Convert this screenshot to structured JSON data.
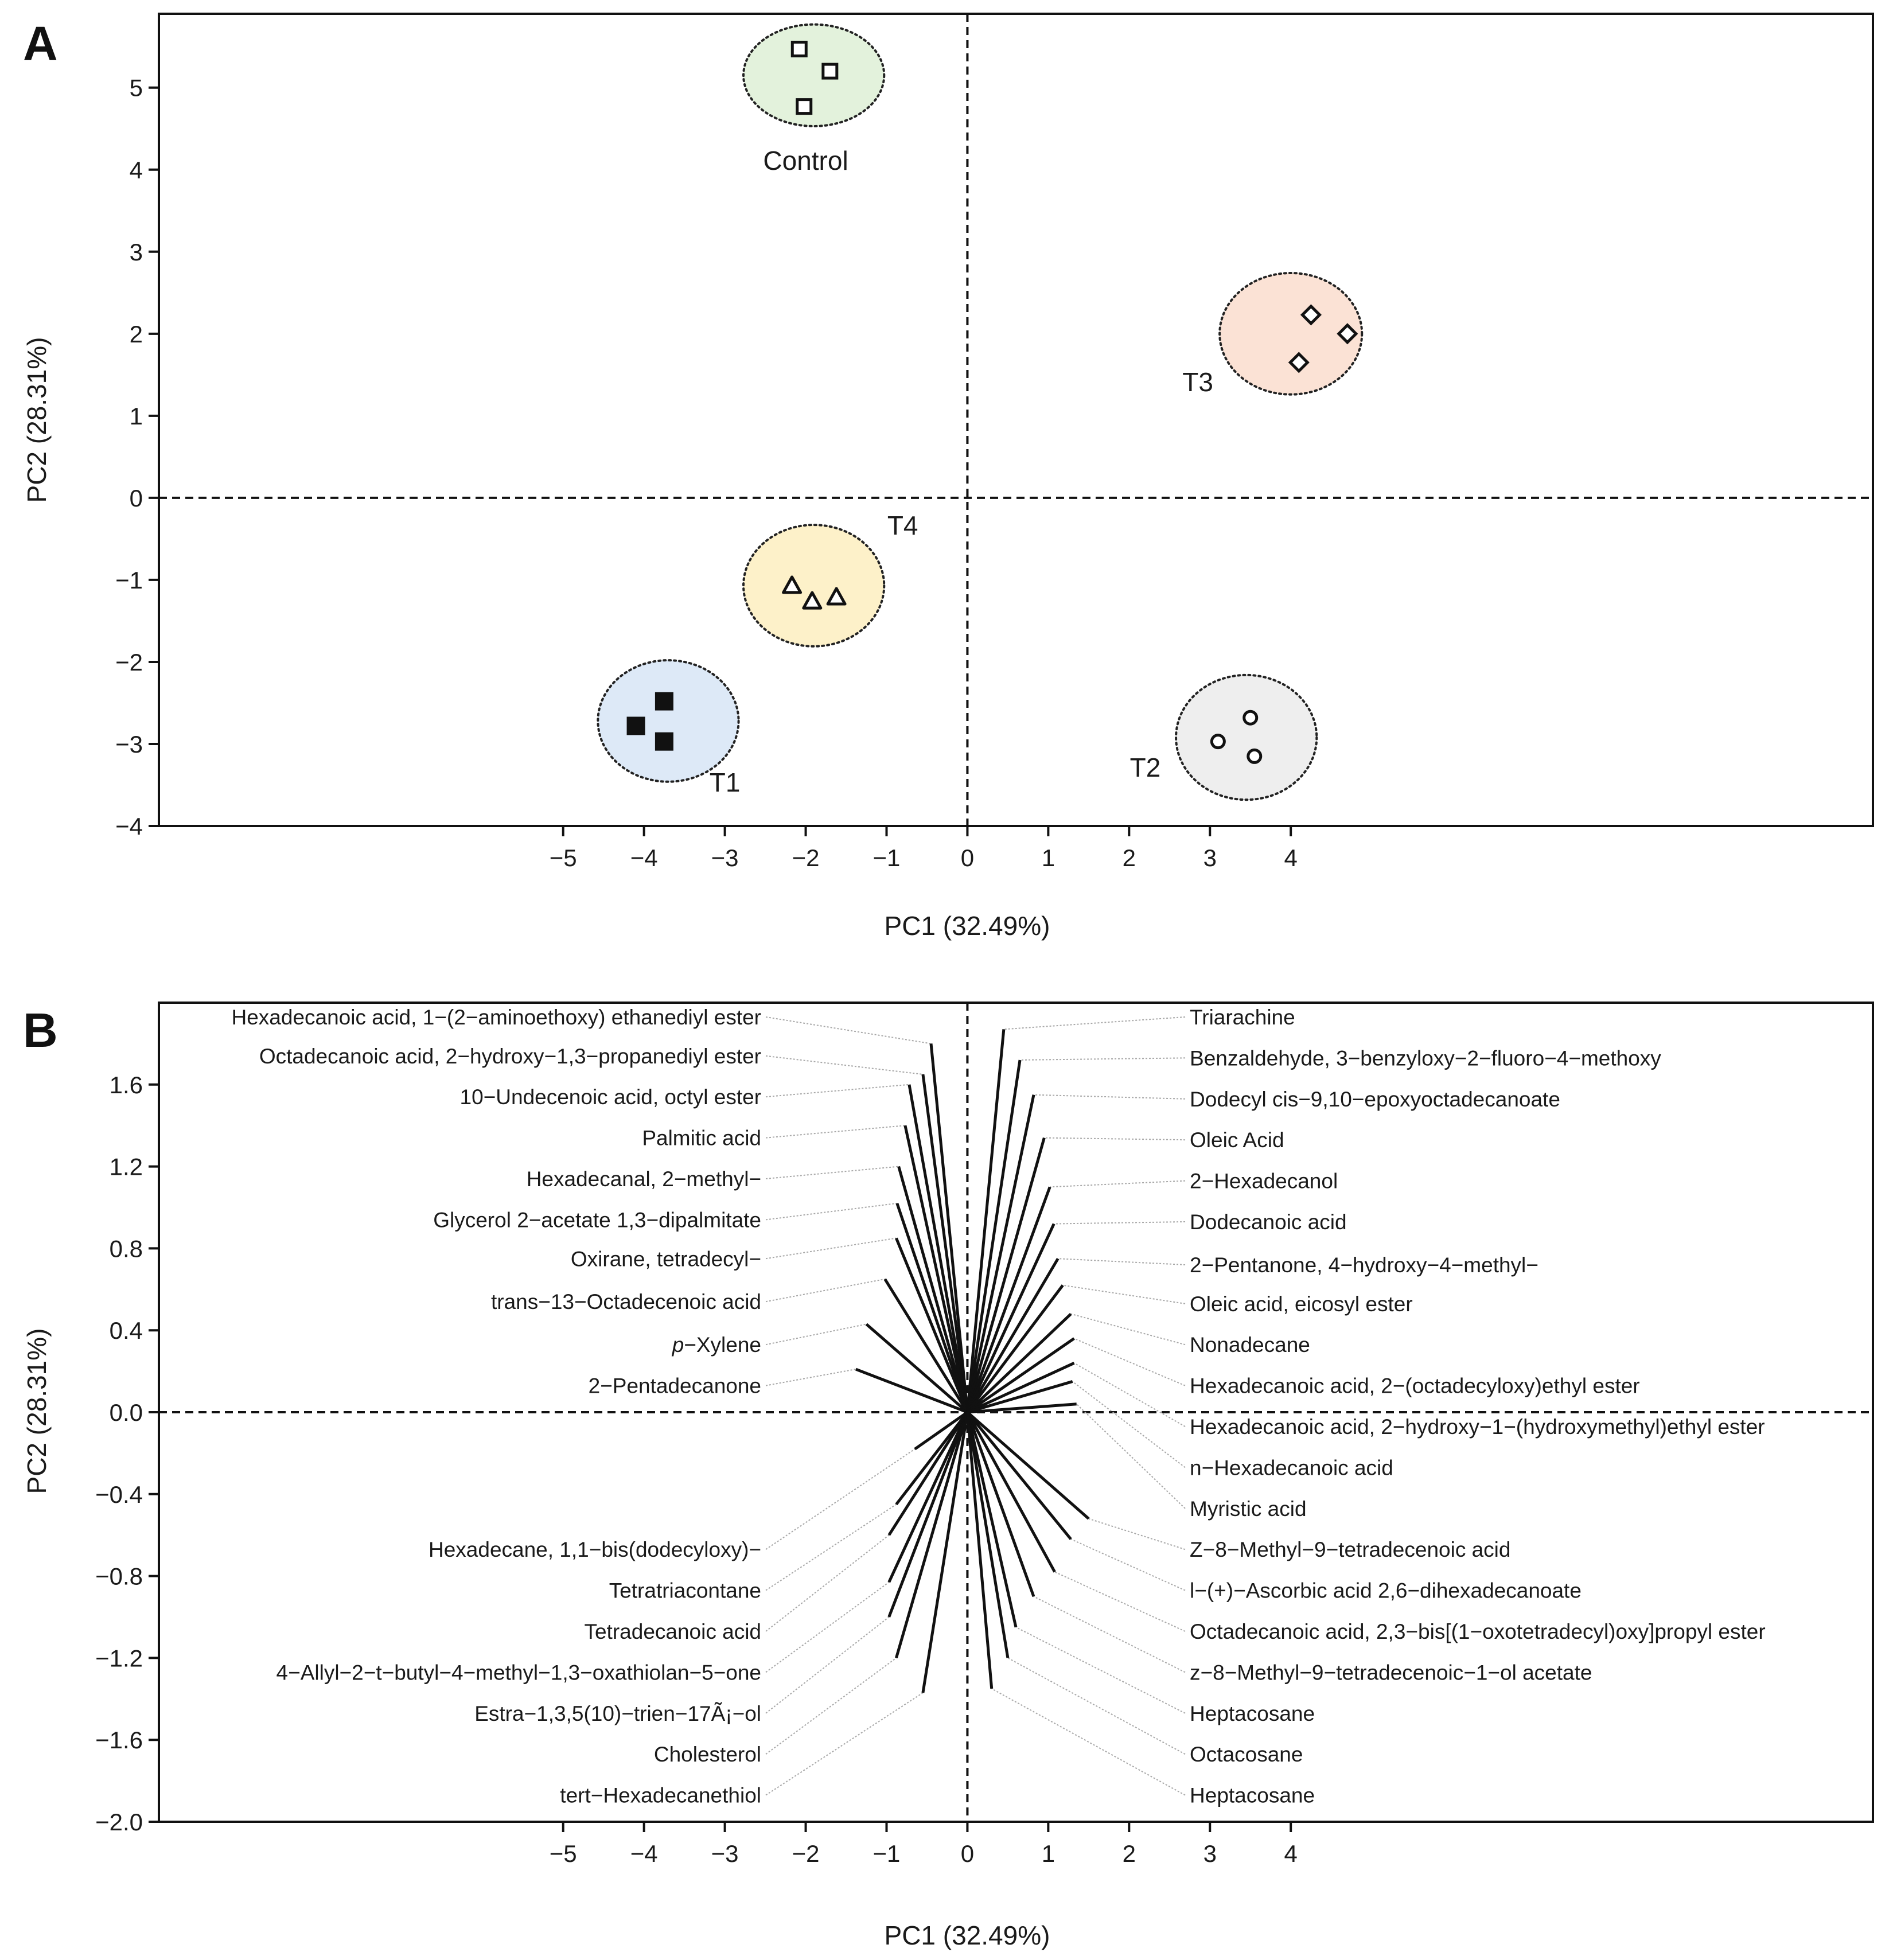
{
  "figure": {
    "panels": [
      "A",
      "B"
    ]
  },
  "chart_data": [
    {
      "type": "scatter",
      "panel": "A",
      "xlabel": "PC1 (32.49%)",
      "ylabel": "PC2 (28.31%)",
      "xlim": [
        -10,
        11.2
      ],
      "ylim": [
        -4,
        5.9
      ],
      "xticks": [
        -5,
        -4,
        -3,
        -2,
        -1,
        0,
        1,
        2,
        3,
        4
      ],
      "yticks": [
        -4,
        -3,
        -2,
        -1,
        0,
        1,
        2,
        3,
        4,
        5
      ],
      "groups": [
        {
          "name": "Control",
          "marker": "square-open",
          "fill": "#e3f2dc",
          "ellipse": {
            "cx": -1.9,
            "cy": 5.15,
            "rx": 0.87,
            "ry": 0.62
          },
          "label_at": [
            -2.0,
            4.0
          ],
          "points": [
            [
              -2.08,
              5.47
            ],
            [
              -1.7,
              5.2
            ],
            [
              -2.02,
              4.77
            ]
          ]
        },
        {
          "name": "T1",
          "marker": "square-filled",
          "fill": "#dde9f7",
          "ellipse": {
            "cx": -3.7,
            "cy": -2.72,
            "rx": 0.87,
            "ry": 0.74
          },
          "label_at": [
            -3.0,
            -3.58
          ],
          "points": [
            [
              -3.75,
              -2.48
            ],
            [
              -4.1,
              -2.78
            ],
            [
              -3.75,
              -2.97
            ]
          ]
        },
        {
          "name": "T2",
          "marker": "circle-open",
          "fill": "#eeeeee",
          "ellipse": {
            "cx": 3.45,
            "cy": -2.92,
            "rx": 0.87,
            "ry": 0.76
          },
          "label_at": [
            2.2,
            -3.4
          ],
          "points": [
            [
              3.5,
              -2.68
            ],
            [
              3.1,
              -2.97
            ],
            [
              3.55,
              -3.15
            ]
          ]
        },
        {
          "name": "T3",
          "marker": "diamond-open",
          "fill": "#fbe2d5",
          "ellipse": {
            "cx": 4.0,
            "cy": 2.0,
            "rx": 0.88,
            "ry": 0.74
          },
          "label_at": [
            2.85,
            1.3
          ],
          "points": [
            [
              4.25,
              2.23
            ],
            [
              4.7,
              2.0
            ],
            [
              4.1,
              1.65
            ]
          ]
        },
        {
          "name": "T4",
          "marker": "triangle-open",
          "fill": "#fdf1c9",
          "ellipse": {
            "cx": -1.9,
            "cy": -1.07,
            "rx": 0.87,
            "ry": 0.74
          },
          "label_at": [
            -0.8,
            -0.45
          ],
          "points": [
            [
              -2.17,
              -1.07
            ],
            [
              -1.92,
              -1.26
            ],
            [
              -1.62,
              -1.21
            ]
          ]
        }
      ]
    },
    {
      "type": "biplot",
      "panel": "B",
      "xlabel": "PC1 (32.49%)",
      "ylabel": "PC2 (28.31%)",
      "xlim": [
        -10,
        11.2
      ],
      "ylim": [
        -2.0,
        2.0
      ],
      "xticks": [
        -5,
        -4,
        -3,
        -2,
        -1,
        0,
        1,
        2,
        3,
        4
      ],
      "yticks": [
        "-2.0",
        "-1.6",
        "-1.2",
        "-0.8",
        "-0.4",
        "0.0",
        "0.4",
        "0.8",
        "1.2",
        "1.6"
      ],
      "loadings_left_top": [
        {
          "label": "Hexadecanoic acid, 1−(2−aminoethoxy) ethanediyl ester",
          "end": [
            -0.45,
            1.8
          ],
          "label_y": 1.93
        },
        {
          "label": "Octadecanoic acid, 2−hydroxy−1,3−propanediyl ester",
          "end": [
            -0.55,
            1.65
          ],
          "label_y": 1.74
        },
        {
          "label": "10−Undecenoic acid, octyl ester",
          "end": [
            -0.72,
            1.6
          ],
          "label_y": 1.54
        },
        {
          "label": "Palmitic acid",
          "end": [
            -0.77,
            1.4
          ],
          "label_y": 1.34
        },
        {
          "label": "Hexadecanal, 2−methyl−",
          "end": [
            -0.85,
            1.2
          ],
          "label_y": 1.14
        },
        {
          "label": "Glycerol 2−acetate 1,3−dipalmitate",
          "end": [
            -0.87,
            1.02
          ],
          "label_y": 0.94
        },
        {
          "label": "Oxirane, tetradecyl−",
          "end": [
            -0.88,
            0.85
          ],
          "label_y": 0.75
        },
        {
          "label": "trans−13−Octadecenoic acid",
          "end": [
            -1.02,
            0.65
          ],
          "label_y": 0.54
        },
        {
          "label": "p−Xylene",
          "label_italic_prefix": "p",
          "end": [
            -1.25,
            0.43
          ],
          "label_y": 0.33
        },
        {
          "label": "2−Pentadecanone",
          "end": [
            -1.38,
            0.21
          ],
          "label_y": 0.13
        }
      ],
      "loadings_left_bottom": [
        {
          "label": "Hexadecane, 1,1−bis(dodecyloxy)−",
          "end": [
            -0.65,
            -0.18
          ],
          "label_y": -0.67
        },
        {
          "label": "Tetratriacontane",
          "end": [
            -0.88,
            -0.45
          ],
          "label_y": -0.87
        },
        {
          "label": "Tetradecanoic acid",
          "end": [
            -0.97,
            -0.6
          ],
          "label_y": -1.07
        },
        {
          "label": "4−Allyl−2−t−butyl−4−methyl−1,3−oxathiolan−5−one",
          "end": [
            -0.97,
            -0.83
          ],
          "label_y": -1.27
        },
        {
          "label": "Estra−1,3,5(10)−trien−17Ã¡−ol",
          "end": [
            -0.97,
            -1.0
          ],
          "label_y": -1.47
        },
        {
          "label": "Cholesterol",
          "end": [
            -0.88,
            -1.2
          ],
          "label_y": -1.67
        },
        {
          "label": "tert−Hexadecanethiol",
          "end": [
            -0.55,
            -1.37
          ],
          "label_y": -1.87
        }
      ],
      "loadings_right_top": [
        {
          "label": "Triarachine",
          "end": [
            0.45,
            1.87
          ],
          "label_y": 1.93
        },
        {
          "label": "Benzaldehyde, 3−benzyloxy−2−fluoro−4−methoxy",
          "end": [
            0.65,
            1.72
          ],
          "label_y": 1.73
        },
        {
          "label": "Dodecyl cis−9,10−epoxyoctadecanoate",
          "end": [
            0.82,
            1.55
          ],
          "label_y": 1.53
        },
        {
          "label": "Oleic Acid",
          "end": [
            0.95,
            1.34
          ],
          "label_y": 1.33
        },
        {
          "label": "2−Hexadecanol",
          "end": [
            1.02,
            1.1
          ],
          "label_y": 1.13
        },
        {
          "label": "Dodecanoic acid",
          "end": [
            1.07,
            0.92
          ],
          "label_y": 0.93
        },
        {
          "label": "2−Pentanone, 4−hydroxy−4−methyl−",
          "end": [
            1.12,
            0.75
          ],
          "label_y": 0.72
        },
        {
          "label": "Oleic acid, eicosyl ester",
          "end": [
            1.18,
            0.62
          ],
          "label_y": 0.53
        },
        {
          "label": "Nonadecane",
          "end": [
            1.28,
            0.48
          ],
          "label_y": 0.33
        },
        {
          "label": "Hexadecanoic acid, 2−(octadecyloxy)ethyl ester",
          "end": [
            1.32,
            0.36
          ],
          "label_y": 0.13
        },
        {
          "label": "Hexadecanoic acid, 2−hydroxy−1−(hydroxymethyl)ethyl ester",
          "end": [
            1.32,
            0.24
          ],
          "label_y": -0.07
        },
        {
          "label": "n−Hexadecanoic acid",
          "end": [
            1.3,
            0.15
          ],
          "label_y": -0.27
        },
        {
          "label": "Myristic acid",
          "end": [
            1.35,
            0.04
          ],
          "label_y": -0.47
        }
      ],
      "loadings_right_bottom": [
        {
          "label": "Z−8−Methyl−9−tetradecenoic acid",
          "end": [
            1.5,
            -0.52
          ],
          "label_y": -0.67
        },
        {
          "label": "l−(+)−Ascorbic acid 2,6−dihexadecanoate",
          "end": [
            1.28,
            -0.62
          ],
          "label_y": -0.87
        },
        {
          "label": "Octadecanoic acid, 2,3−bis[(1−oxotetradecyl)oxy]propyl ester",
          "end": [
            1.08,
            -0.78
          ],
          "label_y": -1.07
        },
        {
          "label": "z−8−Methyl−9−tetradecenoic−1−ol acetate",
          "end": [
            0.82,
            -0.9
          ],
          "label_y": -1.27
        },
        {
          "label": "Heptacosane",
          "end": [
            0.6,
            -1.05
          ],
          "label_y": -1.47
        },
        {
          "label": "Octacosane",
          "end": [
            0.5,
            -1.2
          ],
          "label_y": -1.67
        },
        {
          "label": "Heptacosane",
          "end": [
            0.3,
            -1.35
          ],
          "label_y": -1.87
        }
      ]
    }
  ]
}
